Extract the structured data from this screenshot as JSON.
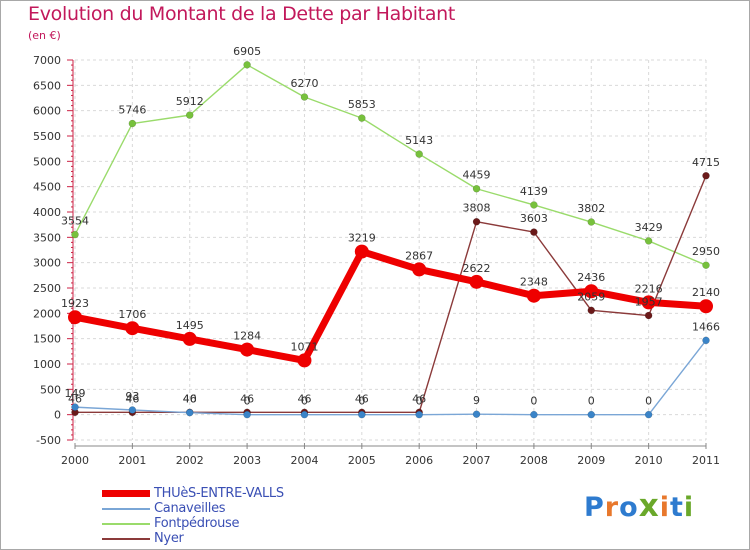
{
  "title": "Evolution du Montant de la Dette par Habitant",
  "subtitle": "(en €)",
  "logo": {
    "text": "Proxiti",
    "colors": [
      "#2e7bcf",
      "#e8782c",
      "#2e7bcf",
      "#6aa82a",
      "#e8782c",
      "#2e7bcf",
      "#6aa82a"
    ]
  },
  "chart_data": {
    "type": "line",
    "x": [
      "2000",
      "2001",
      "2002",
      "2003",
      "2004",
      "2005",
      "2006",
      "2007",
      "2008",
      "2009",
      "2010",
      "2011"
    ],
    "ylim": [
      -500,
      7000
    ],
    "yticks": [
      -500,
      0,
      500,
      1000,
      1500,
      2000,
      2500,
      3000,
      3500,
      4000,
      4500,
      5000,
      5500,
      6000,
      6500,
      7000
    ],
    "grid": true,
    "legend_position": "bottom-left",
    "series": [
      {
        "name": "THUèS-ENTRE-VALLS",
        "color": "#ee0000",
        "values": [
          1923,
          1706,
          1495,
          1284,
          1071,
          3219,
          2867,
          2622,
          2348,
          2436,
          2216,
          2140
        ]
      },
      {
        "name": "Canaveilles",
        "color": "#7aa6d6",
        "values": [
          149,
          93,
          40,
          0,
          0,
          0,
          0,
          9,
          0,
          0,
          0,
          1466
        ]
      },
      {
        "name": "Fontpédrouse",
        "color": "#9adb6b",
        "values": [
          3554,
          5746,
          5912,
          6905,
          6270,
          5853,
          5143,
          4459,
          4139,
          3802,
          3429,
          2950
        ]
      },
      {
        "name": "Nyer",
        "color": "#8b3a3a",
        "values": [
          46,
          46,
          46,
          46,
          46,
          46,
          46,
          3808,
          3603,
          2059,
          1957,
          4715
        ]
      }
    ]
  }
}
